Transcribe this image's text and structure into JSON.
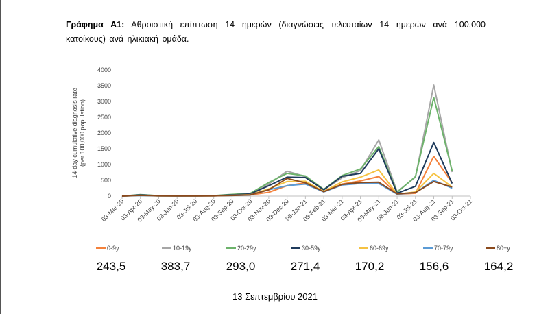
{
  "caption": {
    "label": "Γράφημα Α1:",
    "text": "Αθροιστική επίπτωση 14 ημερών (διαγνώσεις τελευταίων 14 ημερών ανά 100.000 κατοίκους) ανά ηλικιακή ομάδα."
  },
  "date": "13 Σεπτεμβρίου 2021",
  "chart_data": {
    "type": "line",
    "title": "",
    "ylabel": "14-day cumulative diagnosis rate (per 100,000 population)",
    "xlabel": "",
    "ylim": [
      0,
      4000
    ],
    "yticks": [
      0,
      500,
      1000,
      1500,
      2000,
      2500,
      3000,
      3500,
      4000
    ],
    "categories": [
      "03-Mar-20",
      "03-Apr-20",
      "03-May-20",
      "03-Jun-20",
      "03-Jul-20",
      "03-Aug-20",
      "03-Sep-20",
      "03-Oct-20",
      "03-Nov-20",
      "03-Dec-20",
      "03-Jan-21",
      "03-Feb-21",
      "03-Mar-21",
      "03-Apr-21",
      "03-May-21",
      "03-Jun-21",
      "03-Jul-21",
      "03-Aug-21",
      "03-Sep-21",
      "03-Oct-21"
    ],
    "grid": false,
    "legend_position": "bottom",
    "series": [
      {
        "name": "0-9y",
        "color": "#F4813B",
        "latest_value": "243,5",
        "values": [
          0,
          30,
          8,
          5,
          5,
          8,
          25,
          40,
          120,
          330,
          420,
          140,
          380,
          480,
          620,
          60,
          90,
          1260,
          420,
          null
        ]
      },
      {
        "name": "10-19y",
        "color": "#A6A6A6",
        "latest_value": "383,7",
        "values": [
          0,
          50,
          10,
          6,
          8,
          12,
          45,
          70,
          380,
          790,
          620,
          200,
          580,
          810,
          1780,
          140,
          600,
          3520,
          760,
          null
        ]
      },
      {
        "name": "20-29y",
        "color": "#6DB36B",
        "latest_value": "293,0",
        "values": [
          0,
          45,
          12,
          8,
          10,
          15,
          55,
          90,
          430,
          720,
          640,
          210,
          650,
          860,
          1570,
          120,
          620,
          3130,
          800,
          null
        ]
      },
      {
        "name": "30-59y",
        "color": "#1F3B5C",
        "latest_value": "271,4",
        "values": [
          0,
          40,
          10,
          6,
          8,
          12,
          40,
          70,
          330,
          600,
          590,
          200,
          630,
          720,
          1500,
          90,
          310,
          1700,
          400,
          null
        ]
      },
      {
        "name": "60-69y",
        "color": "#F5C242",
        "latest_value": "170,2",
        "values": [
          0,
          25,
          7,
          4,
          5,
          8,
          25,
          45,
          230,
          460,
          470,
          150,
          450,
          600,
          830,
          60,
          130,
          720,
          290,
          null
        ]
      },
      {
        "name": "70-79y",
        "color": "#5B9BD5",
        "latest_value": "156,6",
        "values": [
          0,
          20,
          6,
          4,
          5,
          8,
          20,
          40,
          200,
          330,
          380,
          130,
          350,
          400,
          400,
          60,
          110,
          500,
          250,
          null
        ]
      },
      {
        "name": "80+y",
        "color": "#8B4A1D",
        "latest_value": "164,2",
        "values": [
          0,
          25,
          8,
          4,
          5,
          8,
          20,
          40,
          200,
          560,
          420,
          140,
          370,
          430,
          440,
          70,
          110,
          460,
          290,
          null
        ]
      }
    ]
  }
}
